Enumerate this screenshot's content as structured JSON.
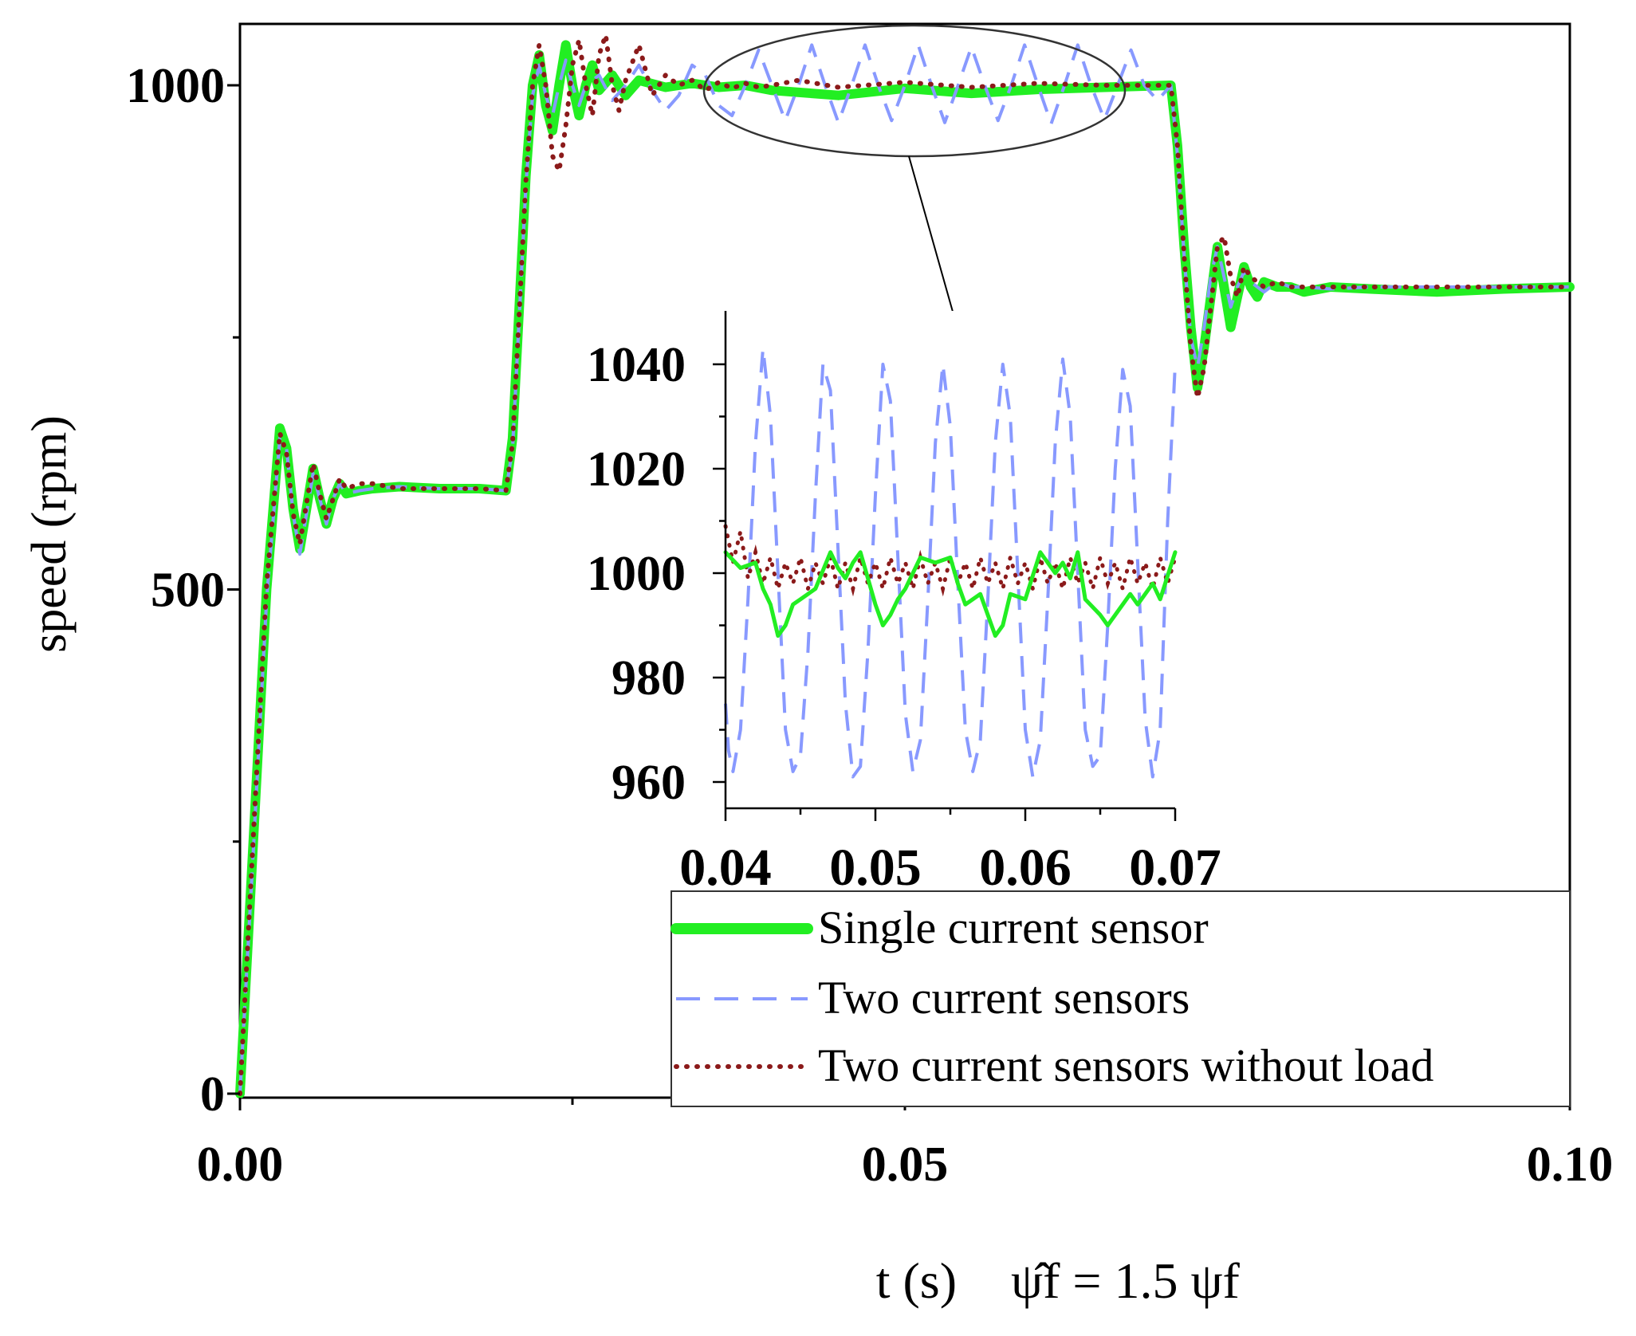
{
  "colors": {
    "single": "#22ee22",
    "two": "#8899ff",
    "noload": "#8b1a1a",
    "axis": "#000000",
    "ellipse": "#333333"
  },
  "chart_data": [
    {
      "id": "main",
      "type": "line",
      "title": "",
      "xlabel": "t (s)",
      "xlabel_annotation": "ψ̂f = 1.5 ψf",
      "ylabel": "speed (rpm)",
      "xlim": [
        0,
        0.1
      ],
      "ylim": [
        0,
        1040
      ],
      "x_ticks": [
        0.0,
        0.05,
        0.1
      ],
      "x_tick_labels": [
        "0.00",
        "0.05",
        "0.10"
      ],
      "x_minor_ticks": [
        0.025,
        0.075
      ],
      "y_ticks": [
        0,
        500,
        1000
      ],
      "y_tick_labels": [
        "0",
        "500",
        "1000"
      ],
      "y_minor_ticks": [
        250,
        750
      ],
      "series": [
        {
          "name": "Single current sensor",
          "style": "solid",
          "x": [
            0,
            0.001,
            0.002,
            0.003,
            0.0035,
            0.004,
            0.0045,
            0.005,
            0.0055,
            0.006,
            0.0065,
            0.007,
            0.0075,
            0.008,
            0.009,
            0.01,
            0.012,
            0.015,
            0.018,
            0.02,
            0.0205,
            0.021,
            0.0215,
            0.022,
            0.0225,
            0.023,
            0.0235,
            0.024,
            0.0245,
            0.025,
            0.0255,
            0.026,
            0.0265,
            0.027,
            0.028,
            0.029,
            0.03,
            0.032,
            0.034,
            0.036,
            0.038,
            0.04,
            0.045,
            0.05,
            0.055,
            0.06,
            0.065,
            0.07,
            0.0705,
            0.071,
            0.0715,
            0.072,
            0.0725,
            0.073,
            0.0735,
            0.074,
            0.0745,
            0.075,
            0.0755,
            0.076,
            0.0765,
            0.077,
            0.078,
            0.079,
            0.08,
            0.082,
            0.085,
            0.09,
            0.095,
            0.1
          ],
          "y": [
            0,
            250,
            500,
            660,
            640,
            580,
            540,
            580,
            620,
            590,
            565,
            590,
            605,
            595,
            598,
            600,
            602,
            600,
            600,
            598,
            650,
            780,
            910,
            1000,
            1030,
            980,
            955,
            1000,
            1040,
            1000,
            970,
            1000,
            1020,
            995,
            1010,
            990,
            1005,
            998,
            1002,
            998,
            1000,
            995,
            990,
            997,
            992,
            996,
            998,
            1000,
            940,
            840,
            760,
            700,
            740,
            790,
            840,
            800,
            760,
            790,
            820,
            800,
            790,
            805,
            800,
            800,
            795,
            800,
            798,
            795,
            798,
            800
          ]
        },
        {
          "name": "Two current sensors",
          "style": "dashed",
          "x": [
            0,
            0.001,
            0.002,
            0.003,
            0.0035,
            0.004,
            0.0045,
            0.005,
            0.0055,
            0.006,
            0.0065,
            0.007,
            0.0075,
            0.008,
            0.009,
            0.01,
            0.012,
            0.015,
            0.018,
            0.02,
            0.0205,
            0.021,
            0.0215,
            0.022,
            0.0225,
            0.023,
            0.0235,
            0.024,
            0.0245,
            0.025,
            0.0255,
            0.026,
            0.027,
            0.028,
            0.029,
            0.03,
            0.031,
            0.032,
            0.033,
            0.034,
            0.035,
            0.036,
            0.037,
            0.038,
            0.039,
            0.04,
            0.041,
            0.042,
            0.043,
            0.044,
            0.045,
            0.046,
            0.047,
            0.048,
            0.049,
            0.05,
            0.051,
            0.052,
            0.053,
            0.054,
            0.055,
            0.056,
            0.057,
            0.058,
            0.059,
            0.06,
            0.061,
            0.062,
            0.063,
            0.064,
            0.065,
            0.066,
            0.067,
            0.068,
            0.069,
            0.07,
            0.0705,
            0.071,
            0.0715,
            0.072,
            0.0725,
            0.073,
            0.0735,
            0.074,
            0.0745,
            0.075,
            0.0755,
            0.076,
            0.077,
            0.078,
            0.079,
            0.08,
            0.082,
            0.085,
            0.09,
            0.095,
            0.1
          ],
          "y": [
            0,
            240,
            490,
            650,
            640,
            575,
            535,
            575,
            615,
            590,
            565,
            590,
            605,
            595,
            598,
            600,
            602,
            600,
            600,
            598,
            640,
            770,
            900,
            990,
            1020,
            990,
            970,
            1000,
            1025,
            1000,
            980,
            1000,
            1010,
            985,
            1000,
            1020,
            995,
            975,
            990,
            1020,
            1010,
            980,
            970,
            1000,
            1035,
            1000,
            965,
            1000,
            1040,
            1000,
            963,
            1000,
            1040,
            1000,
            965,
            1000,
            1040,
            1000,
            963,
            1000,
            1038,
            1000,
            965,
            1000,
            1040,
            1000,
            962,
            1000,
            1040,
            1000,
            966,
            1000,
            1035,
            1000,
            985,
            1000,
            930,
            830,
            750,
            720,
            760,
            810,
            840,
            810,
            780,
            800,
            815,
            805,
            795,
            805,
            800,
            800,
            798,
            800,
            800,
            800,
            800
          ]
        },
        {
          "name": "Two current sensors without load",
          "style": "dotted",
          "x": [
            0,
            0.001,
            0.002,
            0.003,
            0.0035,
            0.004,
            0.0045,
            0.005,
            0.0055,
            0.006,
            0.0065,
            0.007,
            0.0075,
            0.008,
            0.009,
            0.01,
            0.012,
            0.015,
            0.018,
            0.02,
            0.0205,
            0.021,
            0.0215,
            0.022,
            0.0225,
            0.023,
            0.0235,
            0.024,
            0.0245,
            0.025,
            0.0255,
            0.026,
            0.0265,
            0.027,
            0.0275,
            0.028,
            0.0285,
            0.029,
            0.03,
            0.031,
            0.032,
            0.033,
            0.034,
            0.035,
            0.036,
            0.037,
            0.038,
            0.039,
            0.04,
            0.042,
            0.045,
            0.05,
            0.055,
            0.06,
            0.065,
            0.07,
            0.0705,
            0.071,
            0.0715,
            0.072,
            0.0725,
            0.073,
            0.0735,
            0.074,
            0.0745,
            0.075,
            0.0755,
            0.076,
            0.077,
            0.078,
            0.079,
            0.08,
            0.082,
            0.085,
            0.09,
            0.095,
            0.1
          ],
          "y": [
            0,
            255,
            505,
            655,
            635,
            575,
            545,
            585,
            625,
            595,
            570,
            590,
            610,
            600,
            605,
            605,
            600,
            600,
            600,
            598,
            645,
            775,
            905,
            1000,
            1040,
            1000,
            930,
            915,
            960,
            1020,
            1045,
            1000,
            970,
            1030,
            1050,
            1000,
            975,
            1005,
            1040,
            990,
            1010,
            1000,
            1005,
            995,
            1003,
            997,
            1002,
            998,
            1000,
            1005,
            998,
            1003,
            998,
            1002,
            1000,
            1000,
            940,
            830,
            740,
            690,
            720,
            780,
            840,
            850,
            810,
            790,
            820,
            810,
            800,
            805,
            800,
            800,
            800,
            800,
            800,
            800,
            800
          ]
        }
      ],
      "legend": {
        "placement": "bottom-right",
        "entries": [
          "Single current sensor",
          "Two current sensors",
          "Two current sensors without load"
        ]
      },
      "annotations": [
        "zoom ellipse around 0.035–0.068 s near 1000 rpm, arrow to inset"
      ]
    },
    {
      "id": "inset",
      "type": "line",
      "xlim": [
        0.04,
        0.07
      ],
      "ylim": [
        956,
        1046
      ],
      "x_ticks": [
        0.04,
        0.05,
        0.06,
        0.07
      ],
      "x_tick_labels": [
        "0.04",
        "0.05",
        "0.06",
        "0.07"
      ],
      "x_minor_ticks": [
        0.045,
        0.055,
        0.065
      ],
      "y_ticks": [
        960,
        980,
        1000,
        1020,
        1040
      ],
      "y_tick_labels": [
        "960",
        "980",
        "1000",
        "1020",
        "1040"
      ],
      "y_minor_ticks": [
        970,
        990,
        1010,
        1030
      ],
      "series": [
        {
          "name": "Single current sensor",
          "style": "solid",
          "x": [
            0.04,
            0.041,
            0.042,
            0.0425,
            0.043,
            0.0435,
            0.044,
            0.0445,
            0.045,
            0.046,
            0.047,
            0.0475,
            0.048,
            0.0485,
            0.049,
            0.05,
            0.0505,
            0.051,
            0.0515,
            0.052,
            0.053,
            0.054,
            0.055,
            0.0555,
            0.056,
            0.057,
            0.058,
            0.0585,
            0.059,
            0.06,
            0.061,
            0.0615,
            0.062,
            0.0625,
            0.063,
            0.0635,
            0.064,
            0.065,
            0.0655,
            0.066,
            0.067,
            0.0675,
            0.068,
            0.0685,
            0.069,
            0.07
          ],
          "y": [
            1004,
            1001,
            1002,
            997,
            994,
            988,
            990,
            994,
            995,
            997,
            1004,
            1001,
            999,
            1002,
            1004,
            994,
            990,
            992,
            995,
            997,
            1003,
            1002,
            1003,
            998,
            994,
            996,
            988,
            990,
            996,
            995,
            1004,
            1002,
            1000,
            1002,
            999,
            1004,
            995,
            992,
            990,
            992,
            996,
            994,
            996,
            998,
            995,
            1004
          ]
        },
        {
          "name": "Two current sensors",
          "style": "dashed",
          "x": [
            0.04,
            0.0402,
            0.0405,
            0.041,
            0.0415,
            0.042,
            0.0425,
            0.043,
            0.0435,
            0.044,
            0.0445,
            0.045,
            0.0455,
            0.046,
            0.0465,
            0.047,
            0.0475,
            0.048,
            0.0485,
            0.049,
            0.0495,
            0.05,
            0.0505,
            0.051,
            0.0515,
            0.052,
            0.0525,
            0.053,
            0.0535,
            0.054,
            0.0545,
            0.055,
            0.0555,
            0.056,
            0.0565,
            0.057,
            0.0575,
            0.058,
            0.0585,
            0.059,
            0.0595,
            0.06,
            0.0605,
            0.061,
            0.0615,
            0.062,
            0.0625,
            0.063,
            0.0635,
            0.064,
            0.0645,
            0.065,
            0.0655,
            0.066,
            0.0665,
            0.067,
            0.0675,
            0.068,
            0.0685,
            0.069,
            0.0695,
            0.07
          ],
          "y": [
            975,
            966,
            962,
            970,
            995,
            1025,
            1043,
            1030,
            1000,
            970,
            962,
            965,
            985,
            1015,
            1040,
            1035,
            1005,
            975,
            961,
            963,
            985,
            1015,
            1040,
            1033,
            1003,
            973,
            962,
            968,
            995,
            1025,
            1040,
            1028,
            998,
            970,
            962,
            968,
            995,
            1025,
            1040,
            1030,
            1000,
            970,
            961,
            968,
            995,
            1025,
            1041,
            1030,
            1000,
            970,
            963,
            965,
            990,
            1020,
            1039,
            1032,
            1002,
            972,
            961,
            970,
            1010,
            1040
          ]
        },
        {
          "name": "Two current sensors without load",
          "style": "dotted",
          "x": [
            0.04,
            0.0405,
            0.041,
            0.0415,
            0.042,
            0.0425,
            0.043,
            0.0435,
            0.044,
            0.0445,
            0.045,
            0.0455,
            0.046,
            0.0465,
            0.047,
            0.0475,
            0.048,
            0.0485,
            0.049,
            0.0495,
            0.05,
            0.0505,
            0.051,
            0.0515,
            0.052,
            0.0525,
            0.053,
            0.0535,
            0.054,
            0.0545,
            0.055,
            0.0555,
            0.056,
            0.0565,
            0.057,
            0.0575,
            0.058,
            0.0585,
            0.059,
            0.0595,
            0.06,
            0.0605,
            0.061,
            0.0615,
            0.062,
            0.0625,
            0.063,
            0.0635,
            0.064,
            0.0645,
            0.065,
            0.0655,
            0.066,
            0.0665,
            0.067,
            0.0675,
            0.068,
            0.0685,
            0.069,
            0.0695,
            0.07
          ],
          "y": [
            1009,
            1002,
            1008,
            999,
            1004,
            998,
            1003,
            997,
            1002,
            998,
            1003,
            997,
            1002,
            998,
            1003,
            997,
            1002,
            997,
            1003,
            998,
            1002,
            997,
            1003,
            998,
            1002,
            997,
            1003,
            998,
            1002,
            997,
            1003,
            998,
            1002,
            997,
            1003,
            998,
            1002,
            997,
            1003,
            998,
            1002,
            997,
            1003,
            998,
            1002,
            997,
            1003,
            998,
            1002,
            997,
            1003,
            998,
            1002,
            997,
            1003,
            998,
            1002,
            997,
            1003,
            998,
            1003
          ]
        }
      ]
    }
  ]
}
